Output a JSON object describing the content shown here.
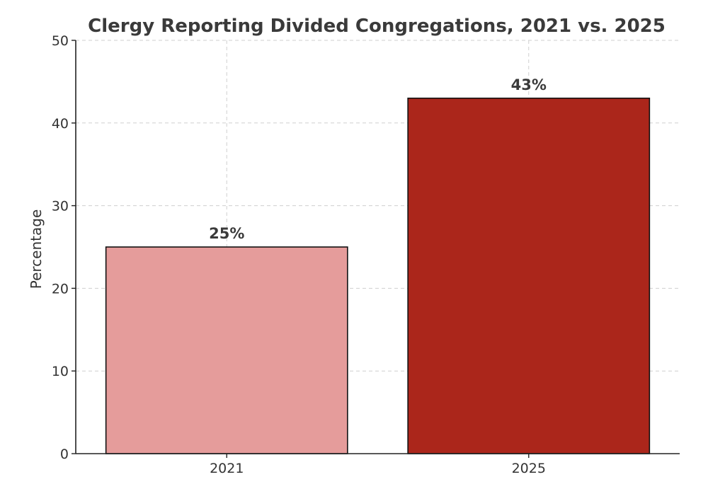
{
  "chart_data": {
    "type": "bar",
    "title": "Clergy Reporting Divided Congregations, 2021 vs. 2025",
    "xlabel": "",
    "ylabel": "Percentage",
    "categories": [
      "2021",
      "2025"
    ],
    "values": [
      25,
      43
    ],
    "data_labels": [
      "25%",
      "43%"
    ],
    "colors": [
      "#e59c9b",
      "#ab261b"
    ],
    "ylim": [
      0,
      50
    ],
    "yticks": [
      0,
      10,
      20,
      30,
      40,
      50
    ],
    "grid": true,
    "legend": "none"
  }
}
